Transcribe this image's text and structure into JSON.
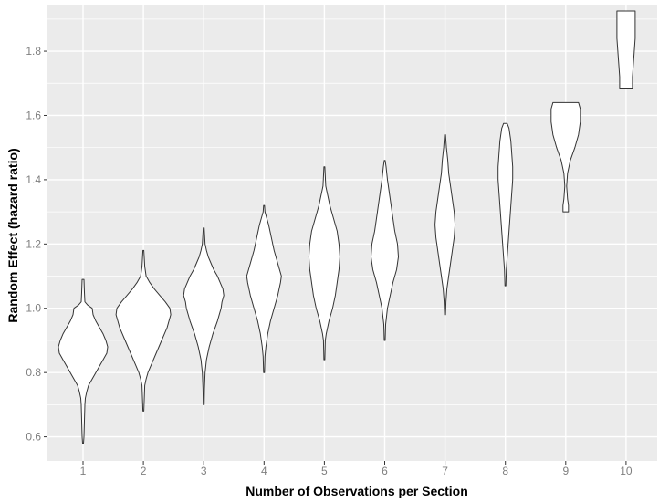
{
  "chart_data": {
    "type": "violin",
    "xlabel": "Number of Observations per Section",
    "ylabel": "Random Effect (hazard ratio)",
    "categories": [
      "1",
      "2",
      "3",
      "4",
      "5",
      "6",
      "7",
      "8",
      "9",
      "10"
    ],
    "ylim": [
      0.525,
      1.945
    ],
    "yticks": [
      0.6,
      0.8,
      1.0,
      1.2,
      1.4,
      1.6,
      1.8
    ],
    "ytick_labels": [
      "0.6",
      "0.8",
      "1.0",
      "1.2",
      "1.4",
      "1.6",
      "1.8"
    ],
    "grid": true,
    "panel_background": "#ebebeb",
    "grid_color": "#ffffff",
    "violin_fill": "#ffffff",
    "violin_stroke": "#333333",
    "violins": [
      {
        "category": "1",
        "profile": [
          [
            0.58,
            0.5
          ],
          [
            0.6,
            1
          ],
          [
            0.65,
            1.5
          ],
          [
            0.7,
            2
          ],
          [
            0.72,
            2.5
          ],
          [
            0.74,
            4
          ],
          [
            0.76,
            6
          ],
          [
            0.78,
            10
          ],
          [
            0.8,
            14
          ],
          [
            0.82,
            18
          ],
          [
            0.84,
            22
          ],
          [
            0.86,
            26
          ],
          [
            0.88,
            27
          ],
          [
            0.9,
            25
          ],
          [
            0.92,
            22
          ],
          [
            0.94,
            18
          ],
          [
            0.96,
            14
          ],
          [
            0.98,
            11
          ],
          [
            1.0,
            10
          ],
          [
            1.01,
            5
          ],
          [
            1.02,
            2
          ],
          [
            1.05,
            1.5
          ],
          [
            1.09,
            1
          ]
        ]
      },
      {
        "category": "2",
        "profile": [
          [
            0.68,
            0.5
          ],
          [
            0.72,
            1
          ],
          [
            0.76,
            1.5
          ],
          [
            0.78,
            3
          ],
          [
            0.8,
            5
          ],
          [
            0.82,
            8
          ],
          [
            0.84,
            11
          ],
          [
            0.86,
            14
          ],
          [
            0.88,
            17
          ],
          [
            0.9,
            20
          ],
          [
            0.92,
            23
          ],
          [
            0.94,
            26
          ],
          [
            0.96,
            28
          ],
          [
            0.98,
            30
          ],
          [
            1.0,
            29
          ],
          [
            1.02,
            24
          ],
          [
            1.04,
            18
          ],
          [
            1.06,
            12
          ],
          [
            1.08,
            7
          ],
          [
            1.1,
            3
          ],
          [
            1.13,
            1.5
          ],
          [
            1.18,
            0.5
          ]
        ]
      },
      {
        "category": "3",
        "profile": [
          [
            0.7,
            0.5
          ],
          [
            0.75,
            0.8
          ],
          [
            0.8,
            1.5
          ],
          [
            0.84,
            3
          ],
          [
            0.88,
            6
          ],
          [
            0.92,
            10
          ],
          [
            0.96,
            15
          ],
          [
            1.0,
            19
          ],
          [
            1.02,
            20
          ],
          [
            1.04,
            22
          ],
          [
            1.06,
            21
          ],
          [
            1.08,
            18
          ],
          [
            1.1,
            15
          ],
          [
            1.12,
            11
          ],
          [
            1.14,
            8
          ],
          [
            1.16,
            5
          ],
          [
            1.18,
            3
          ],
          [
            1.2,
            1.5
          ],
          [
            1.25,
            0.5
          ]
        ]
      },
      {
        "category": "4",
        "profile": [
          [
            0.8,
            0.5
          ],
          [
            0.85,
            1
          ],
          [
            0.88,
            2
          ],
          [
            0.92,
            4
          ],
          [
            0.96,
            7
          ],
          [
            1.0,
            11
          ],
          [
            1.04,
            15
          ],
          [
            1.08,
            18
          ],
          [
            1.1,
            19
          ],
          [
            1.12,
            17
          ],
          [
            1.14,
            15
          ],
          [
            1.18,
            11
          ],
          [
            1.22,
            8
          ],
          [
            1.26,
            5
          ],
          [
            1.28,
            3
          ],
          [
            1.3,
            1
          ],
          [
            1.32,
            0.5
          ]
        ]
      },
      {
        "category": "5",
        "profile": [
          [
            0.84,
            0.5
          ],
          [
            0.9,
            1
          ],
          [
            0.92,
            2
          ],
          [
            0.96,
            5
          ],
          [
            1.0,
            9
          ],
          [
            1.04,
            12
          ],
          [
            1.08,
            14
          ],
          [
            1.12,
            16
          ],
          [
            1.16,
            17
          ],
          [
            1.2,
            16
          ],
          [
            1.24,
            14
          ],
          [
            1.28,
            10
          ],
          [
            1.32,
            6
          ],
          [
            1.36,
            3
          ],
          [
            1.38,
            1.5
          ],
          [
            1.44,
            0.5
          ]
        ]
      },
      {
        "category": "6",
        "profile": [
          [
            0.9,
            0.5
          ],
          [
            0.95,
            1
          ],
          [
            1.0,
            3
          ],
          [
            1.04,
            6
          ],
          [
            1.08,
            9
          ],
          [
            1.12,
            13
          ],
          [
            1.16,
            15
          ],
          [
            1.2,
            14
          ],
          [
            1.24,
            11
          ],
          [
            1.28,
            9
          ],
          [
            1.32,
            7
          ],
          [
            1.36,
            5
          ],
          [
            1.4,
            3
          ],
          [
            1.44,
            1.5
          ],
          [
            1.46,
            0.5
          ]
        ]
      },
      {
        "category": "7",
        "profile": [
          [
            0.98,
            0.5
          ],
          [
            1.02,
            1
          ],
          [
            1.06,
            2
          ],
          [
            1.1,
            4
          ],
          [
            1.14,
            6
          ],
          [
            1.18,
            8
          ],
          [
            1.22,
            10
          ],
          [
            1.26,
            11
          ],
          [
            1.3,
            10
          ],
          [
            1.34,
            8
          ],
          [
            1.38,
            6
          ],
          [
            1.42,
            4
          ],
          [
            1.46,
            3
          ],
          [
            1.5,
            1.5
          ],
          [
            1.54,
            0.5
          ]
        ]
      },
      {
        "category": "8",
        "profile": [
          [
            1.07,
            0.5
          ],
          [
            1.12,
            1
          ],
          [
            1.16,
            2
          ],
          [
            1.2,
            3
          ],
          [
            1.24,
            4
          ],
          [
            1.28,
            5
          ],
          [
            1.32,
            6
          ],
          [
            1.36,
            7
          ],
          [
            1.4,
            8
          ],
          [
            1.44,
            8
          ],
          [
            1.48,
            7
          ],
          [
            1.52,
            6
          ],
          [
            1.56,
            4
          ],
          [
            1.575,
            2
          ],
          [
            1.575,
            0
          ]
        ]
      },
      {
        "category": "9",
        "profile": [
          [
            1.3,
            0
          ],
          [
            1.3,
            3
          ],
          [
            1.32,
            3
          ],
          [
            1.34,
            2
          ],
          [
            1.38,
            1
          ],
          [
            1.42,
            2
          ],
          [
            1.46,
            5
          ],
          [
            1.5,
            10
          ],
          [
            1.54,
            14
          ],
          [
            1.58,
            16
          ],
          [
            1.62,
            16
          ],
          [
            1.64,
            14
          ],
          [
            1.64,
            0
          ]
        ]
      },
      {
        "category": "10",
        "profile": [
          [
            1.685,
            0
          ],
          [
            1.685,
            7
          ],
          [
            1.72,
            7
          ],
          [
            1.76,
            8
          ],
          [
            1.8,
            9
          ],
          [
            1.84,
            10
          ],
          [
            1.88,
            10
          ],
          [
            1.925,
            10
          ],
          [
            1.925,
            0
          ]
        ]
      }
    ]
  }
}
